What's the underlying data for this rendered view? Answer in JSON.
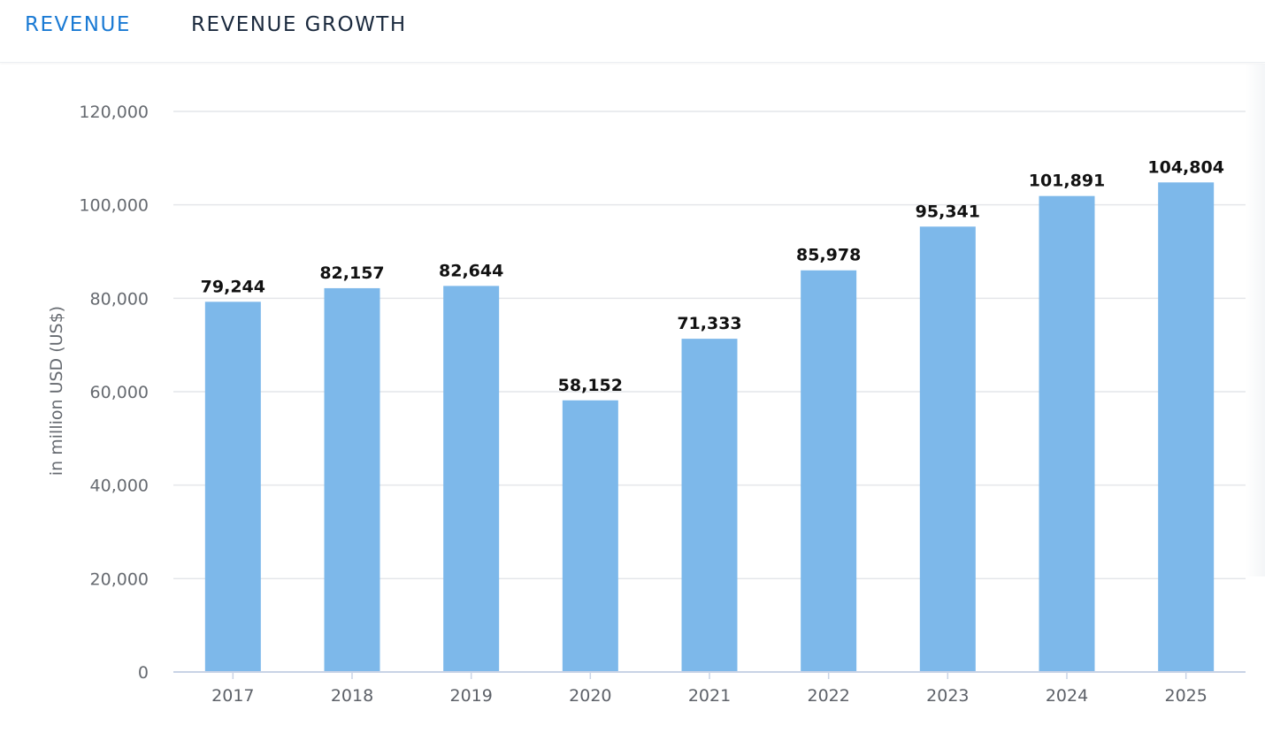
{
  "tabs": [
    {
      "label": "REVENUE",
      "active": true
    },
    {
      "label": "REVENUE GROWTH",
      "active": false
    }
  ],
  "colors": {
    "bar": "#7db8ea",
    "grid": "#e4e6ea",
    "axis": "#c9d3e6",
    "tab_active": "#1a7ad4",
    "tab_inactive": "#1b2a3e"
  },
  "chart_data": {
    "type": "bar",
    "title": "",
    "xlabel": "",
    "ylabel": "in million USD (US$)",
    "categories": [
      "2017",
      "2018",
      "2019",
      "2020",
      "2021",
      "2022",
      "2023",
      "2024",
      "2025"
    ],
    "values": [
      79244,
      82157,
      82644,
      58152,
      71333,
      85978,
      95341,
      101891,
      104804
    ],
    "value_labels": [
      "79,244",
      "82,157",
      "82,644",
      "58,152",
      "71,333",
      "85,978",
      "95,341",
      "101,891",
      "104,804"
    ],
    "ylim": [
      0,
      120000
    ],
    "yticks": [
      0,
      20000,
      40000,
      60000,
      80000,
      100000,
      120000
    ],
    "ytick_labels": [
      "0",
      "20,000",
      "40,000",
      "60,000",
      "80,000",
      "100,000",
      "120,000"
    ],
    "grid": true,
    "legend": "none"
  }
}
